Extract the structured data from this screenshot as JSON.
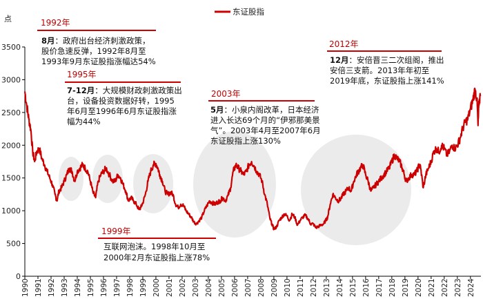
{
  "chart_data": {
    "type": "line",
    "title": "",
    "xlabel": "",
    "ylabel": "点",
    "legend": "东证股指",
    "legend_position": "top-center",
    "series_color": "#cc0000",
    "years": [
      "1990",
      "1991",
      "1992",
      "1993",
      "1994",
      "1995",
      "1996",
      "1997",
      "1998",
      "1999",
      "2000",
      "2001",
      "2002",
      "2003",
      "2004",
      "2005",
      "2006",
      "2007",
      "2008",
      "2009",
      "2010",
      "2011",
      "2012",
      "2013",
      "2014",
      "2015",
      "2016",
      "2017",
      "2018",
      "2019",
      "2020",
      "2021",
      "2022",
      "2023",
      "2024"
    ],
    "xlim": [
      1990,
      2024.8
    ],
    "ylim": [
      0,
      3500
    ],
    "yticks": [
      0,
      500,
      1000,
      1500,
      2000,
      2500,
      3000,
      3500
    ],
    "ytick_labels": [
      "0",
      "500",
      "1000",
      "1500",
      "2000",
      "2500",
      "3000",
      "3500"
    ],
    "series": [
      {
        "name": "东证股指",
        "x": [
          1990.0,
          1990.15,
          1990.3,
          1990.45,
          1990.6,
          1990.75,
          1990.9,
          1991.1,
          1991.3,
          1991.5,
          1991.7,
          1991.9,
          1992.1,
          1992.3,
          1992.45,
          1992.6,
          1992.8,
          1993.0,
          1993.2,
          1993.4,
          1993.6,
          1993.8,
          1994.0,
          1994.2,
          1994.4,
          1994.6,
          1994.8,
          1995.0,
          1995.2,
          1995.4,
          1995.6,
          1995.8,
          1996.0,
          1996.2,
          1996.45,
          1996.7,
          1996.9,
          1997.1,
          1997.3,
          1997.5,
          1997.7,
          1997.9,
          1998.1,
          1998.3,
          1998.5,
          1998.7,
          1998.85,
          1999.0,
          1999.2,
          1999.4,
          1999.6,
          1999.8,
          2000.0,
          2000.15,
          2000.3,
          2000.5,
          2000.7,
          2000.9,
          2001.1,
          2001.3,
          2001.5,
          2001.7,
          2001.9,
          2002.1,
          2002.3,
          2002.5,
          2002.7,
          2002.9,
          2003.1,
          2003.3,
          2003.5,
          2003.7,
          2003.9,
          2004.1,
          2004.3,
          2004.5,
          2004.7,
          2004.9,
          2005.1,
          2005.3,
          2005.5,
          2005.7,
          2005.9,
          2006.1,
          2006.3,
          2006.5,
          2006.7,
          2006.9,
          2007.1,
          2007.3,
          2007.5,
          2007.7,
          2007.9,
          2008.1,
          2008.3,
          2008.5,
          2008.7,
          2008.85,
          2009.0,
          2009.2,
          2009.4,
          2009.6,
          2009.8,
          2010.0,
          2010.2,
          2010.4,
          2010.6,
          2010.8,
          2011.0,
          2011.2,
          2011.4,
          2011.6,
          2011.8,
          2012.0,
          2012.2,
          2012.4,
          2012.6,
          2012.8,
          2012.95,
          2013.1,
          2013.3,
          2013.5,
          2013.7,
          2013.9,
          2014.1,
          2014.3,
          2014.5,
          2014.7,
          2014.9,
          2015.1,
          2015.3,
          2015.45,
          2015.6,
          2015.8,
          2016.0,
          2016.2,
          2016.4,
          2016.6,
          2016.8,
          2017.0,
          2017.2,
          2017.4,
          2017.6,
          2017.8,
          2018.0,
          2018.2,
          2018.4,
          2018.6,
          2018.8,
          2018.95,
          2019.1,
          2019.3,
          2019.5,
          2019.7,
          2019.9,
          2020.1,
          2020.2,
          2020.4,
          2020.6,
          2020.8,
          2021.0,
          2021.2,
          2021.4,
          2021.6,
          2021.8,
          2022.0,
          2022.2,
          2022.4,
          2022.6,
          2022.8,
          2023.0,
          2023.2,
          2023.4,
          2023.6,
          2023.8,
          2024.0,
          2024.2,
          2024.35,
          2024.5,
          2024.58,
          2024.65,
          2024.75
        ],
        "y": [
          2820,
          2600,
          2400,
          2250,
          1900,
          1750,
          1900,
          1950,
          1800,
          1700,
          1600,
          1500,
          1400,
          1250,
          1150,
          1300,
          1350,
          1450,
          1550,
          1650,
          1600,
          1450,
          1600,
          1650,
          1700,
          1650,
          1600,
          1450,
          1280,
          1200,
          1450,
          1550,
          1600,
          1650,
          1550,
          1450,
          1450,
          1550,
          1500,
          1400,
          1300,
          1150,
          1200,
          1150,
          1100,
          1020,
          1050,
          1120,
          1250,
          1450,
          1600,
          1700,
          1720,
          1650,
          1550,
          1450,
          1300,
          1250,
          1280,
          1250,
          1100,
          1050,
          1100,
          1080,
          1000,
          950,
          900,
          830,
          800,
          850,
          900,
          1000,
          1080,
          1150,
          1120,
          1100,
          1130,
          1150,
          1200,
          1150,
          1230,
          1350,
          1600,
          1700,
          1650,
          1600,
          1550,
          1600,
          1700,
          1750,
          1680,
          1600,
          1550,
          1450,
          1250,
          1100,
          880,
          800,
          720,
          750,
          850,
          900,
          950,
          920,
          850,
          950,
          900,
          780,
          850,
          900,
          930,
          880,
          800,
          800,
          740,
          760,
          780,
          800,
          850,
          900,
          1100,
          1250,
          1200,
          1150,
          1180,
          1250,
          1300,
          1350,
          1300,
          1450,
          1550,
          1600,
          1650,
          1700,
          1550,
          1450,
          1300,
          1350,
          1400,
          1450,
          1500,
          1550,
          1600,
          1650,
          1750,
          1850,
          1800,
          1750,
          1650,
          1550,
          1450,
          1500,
          1550,
          1550,
          1600,
          1700,
          1650,
          1350,
          1550,
          1650,
          1750,
          1900,
          1950,
          1900,
          2000,
          1950,
          1850,
          1900,
          2000,
          1950,
          2000,
          2100,
          2250,
          2350,
          2400,
          2550,
          2700,
          2850,
          2700,
          2300,
          2650,
          2750
        ]
      }
    ],
    "annotations": [
      {
        "year": "1992年",
        "lines": [
          {
            "bold": "8月",
            "text": "：政府出台经济刺激政策，"
          },
          {
            "bold": "",
            "text": "股价急速反弹，1992年8月至"
          },
          {
            "bold": "",
            "text": "1993年9月东证股指涨幅达54%"
          }
        ]
      },
      {
        "year": "1995年",
        "lines": [
          {
            "bold": "7-12月",
            "text": "：大规模财政刺激政策出"
          },
          {
            "bold": "",
            "text": "台，设备投资数据好转，1995"
          },
          {
            "bold": "",
            "text": "年6月至1996年6月东证股指涨"
          },
          {
            "bold": "",
            "text": "幅为44%"
          }
        ]
      },
      {
        "year": "2003年",
        "lines": [
          {
            "bold": "5月",
            "text": "：小泉内阁改革，日本经济"
          },
          {
            "bold": "",
            "text": "进入长达69个月的“伊邪那美景"
          },
          {
            "bold": "",
            "text": "气”。2003年4月至2007年6月"
          },
          {
            "bold": "",
            "text": "东证股指上涨130%"
          }
        ]
      },
      {
        "year": "2012年",
        "lines": [
          {
            "bold": "12月",
            "text": "：安倍晋三二次组阁，推出"
          },
          {
            "bold": "",
            "text": "安倍三支箭。2013年年初至"
          },
          {
            "bold": "",
            "text": "2019年底，东证股指上涨141%"
          }
        ]
      },
      {
        "year": "1999年",
        "lines": [
          {
            "bold": "",
            "text": "互联网泡沫。1998年10月至"
          },
          {
            "bold": "",
            "text": "2000年2月东证股指上涨78%"
          }
        ]
      }
    ]
  }
}
